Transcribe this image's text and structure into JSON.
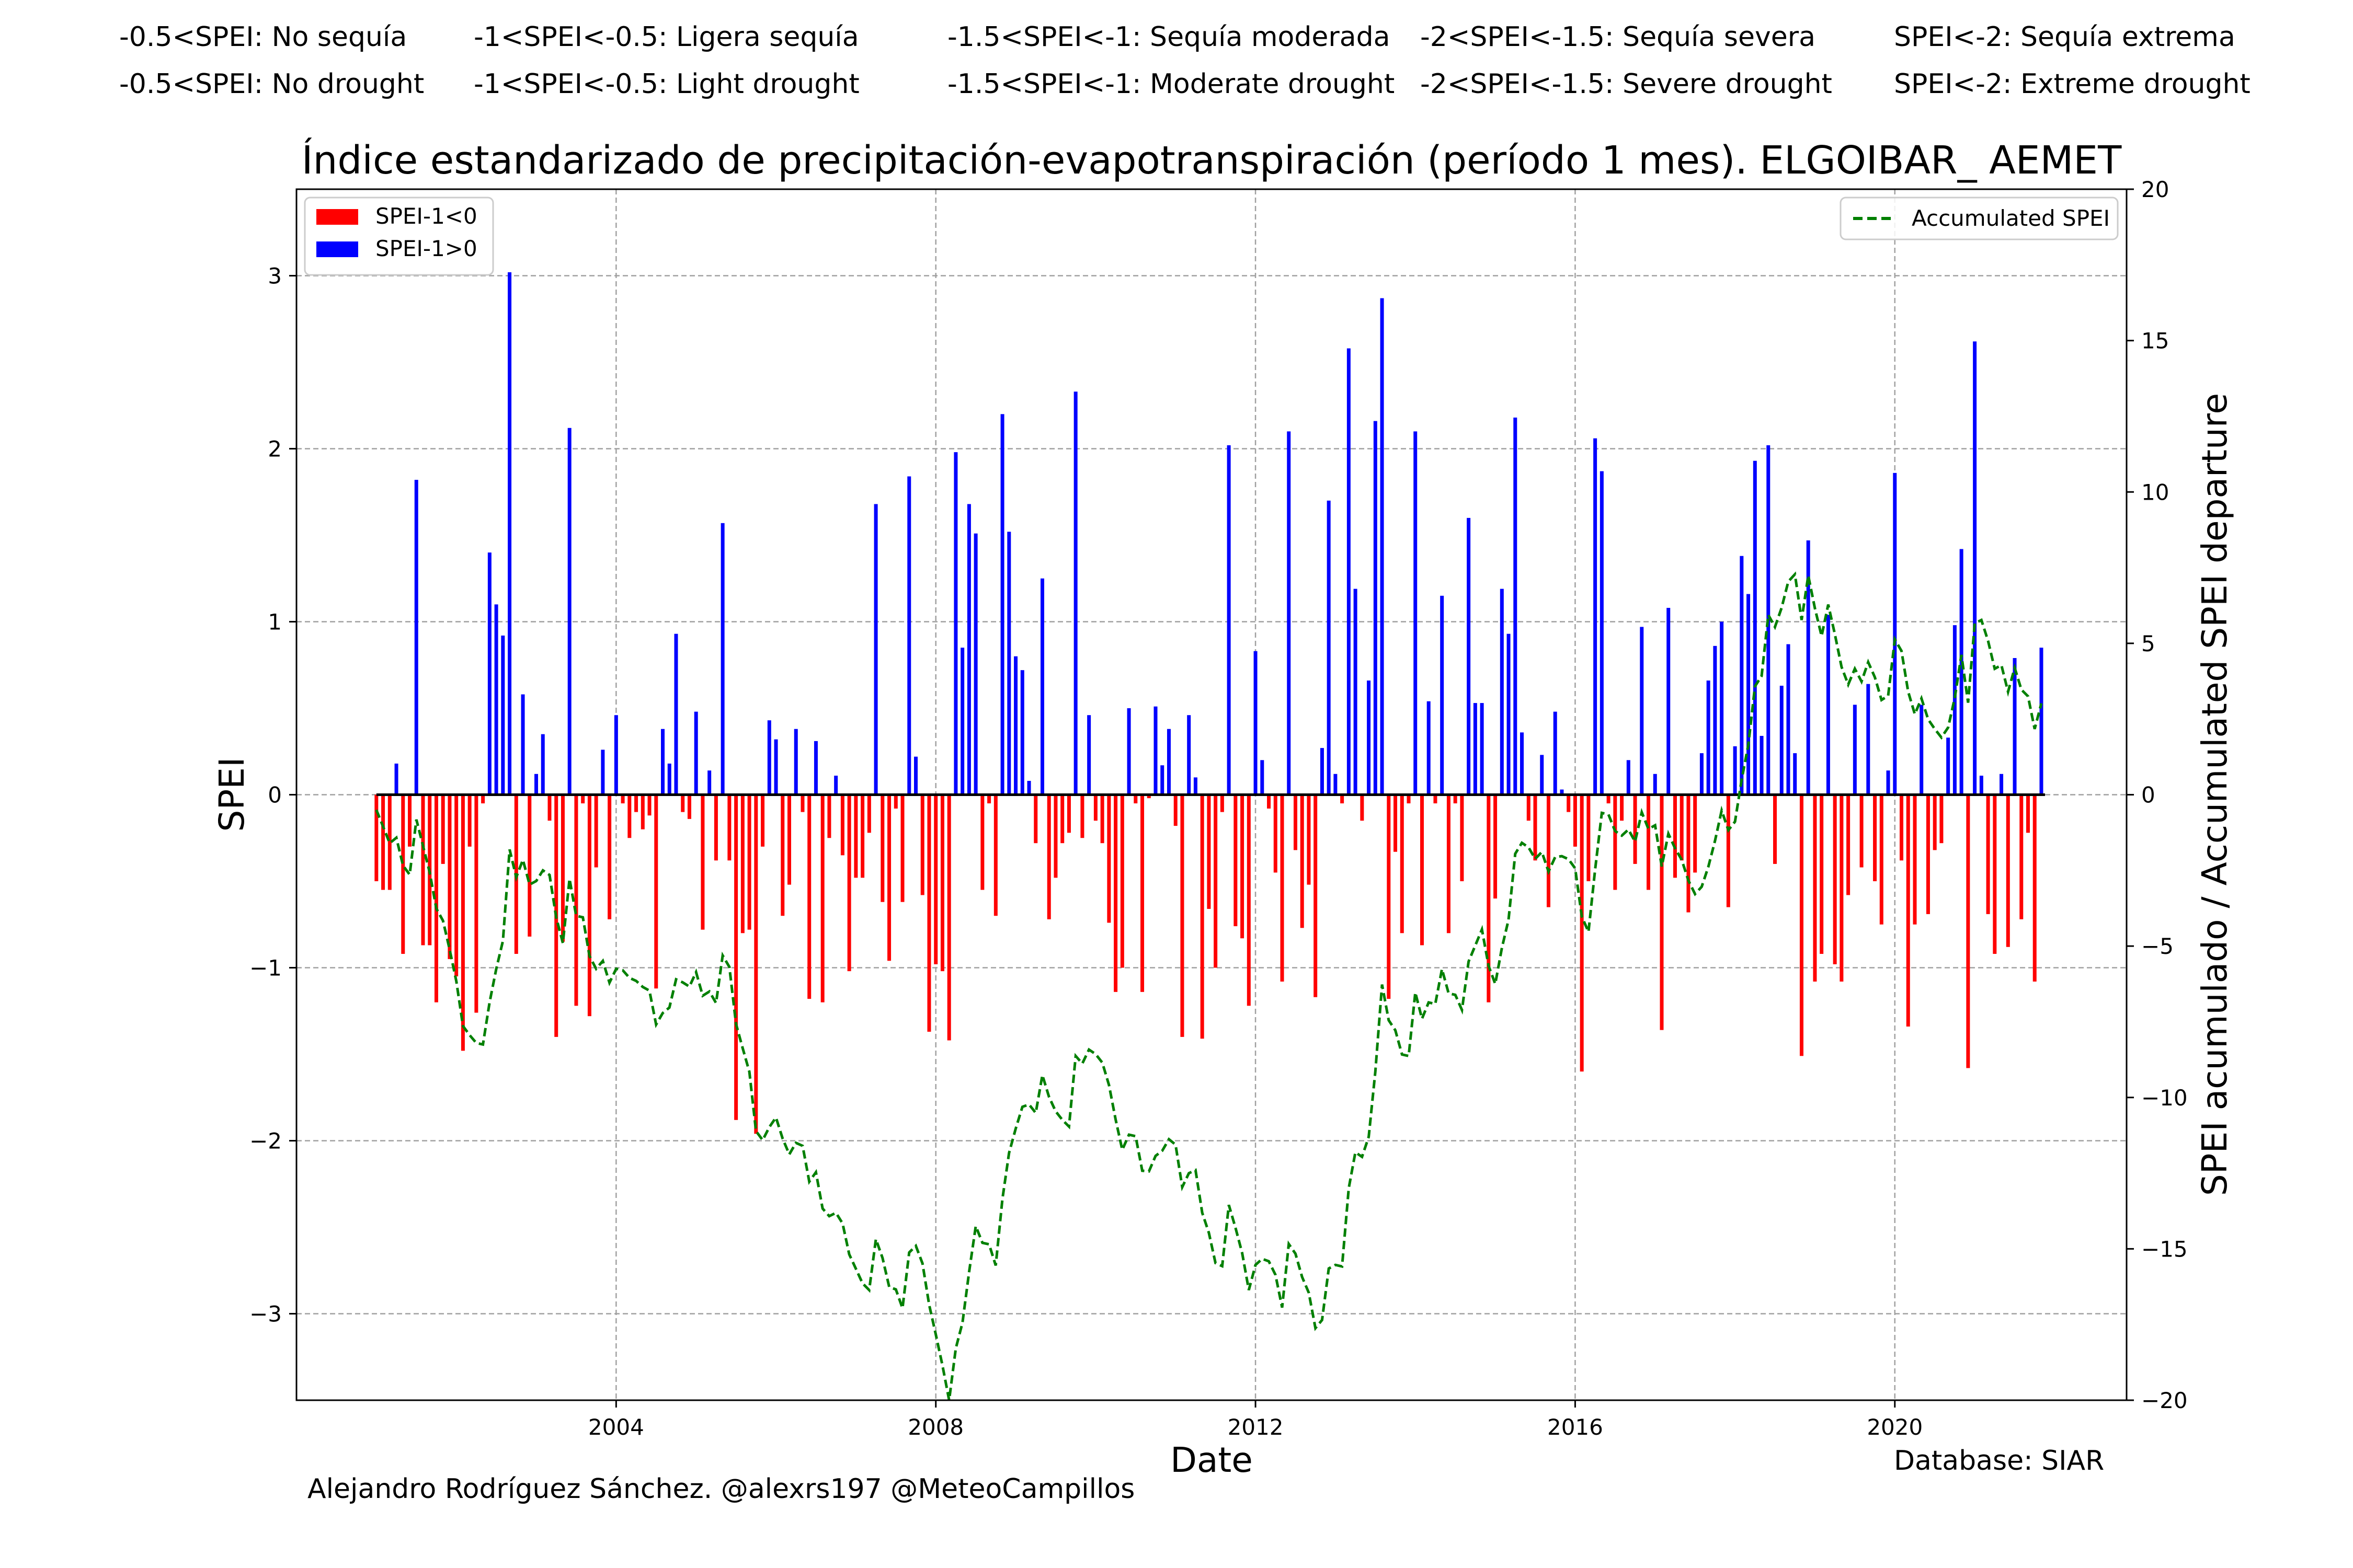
{
  "header": {
    "es": [
      "-0.5<SPEI: No sequía",
      "-1<SPEI<-0.5: Ligera sequía",
      "-1.5<SPEI<-1: Sequía moderada",
      "-2<SPEI<-1.5: Sequía severa",
      "SPEI<-2: Sequía extrema"
    ],
    "en": [
      "-0.5<SPEI: No drought",
      "-1<SPEI<-0.5: Light drought",
      "-1.5<SPEI<-1: Moderate drought",
      "-2<SPEI<-1.5: Severe drought",
      "SPEI<-2: Extreme drought"
    ]
  },
  "footer": {
    "credit": "Alejandro Rodríguez Sánchez. @alexrs197 @MeteoCampillos",
    "database": "Database: SIAR"
  },
  "chart_data": {
    "type": "bar",
    "title": "Índice estandarizado de precipitación-evapotranspiración (período 1 mes). ELGOIBAR_ AEMET",
    "xlabel": "Date",
    "ylabel": "SPEI",
    "y2label": "SPEI acumulado / Accumulated SPEI departure",
    "xlim": [
      2000.0,
      2022.9
    ],
    "ylim": [
      -3.5,
      3.5
    ],
    "y2lim": [
      -20,
      20
    ],
    "xticks": [
      "2004",
      "2008",
      "2012",
      "2016",
      "2020"
    ],
    "yticks": [
      "−3",
      "−2",
      "−1",
      "0",
      "1",
      "2",
      "3"
    ],
    "y2ticks": [
      "−20",
      "−15",
      "−10",
      "−5",
      "0",
      "5",
      "10",
      "15",
      "20"
    ],
    "grid": true,
    "legend_left": {
      "position": "top-left",
      "entries": [
        "SPEI-1<0",
        "SPEI-1>0"
      ]
    },
    "legend_right": {
      "position": "top-right",
      "entries": [
        "Accumulated SPEI"
      ]
    },
    "colors": {
      "negative": "#ff0000",
      "positive": "#0000ff",
      "accumulated": "#008000",
      "zero_line": "#000000"
    },
    "start": "2001-01",
    "frequency": "monthly",
    "spei": [
      -0.5,
      -0.55,
      -0.55,
      0.18,
      -0.92,
      -0.3,
      1.82,
      -0.87,
      -0.87,
      -1.2,
      -0.4,
      -0.95,
      -1.05,
      -1.48,
      -0.3,
      -1.26,
      -0.05,
      1.4,
      1.1,
      0.92,
      3.02,
      -0.92,
      0.58,
      -0.82,
      0.12,
      0.35,
      -0.15,
      -1.4,
      -0.85,
      2.12,
      -1.22,
      -0.05,
      -1.28,
      -0.42,
      0.26,
      -0.72,
      0.46,
      -0.05,
      -0.25,
      -0.1,
      -0.2,
      -0.12,
      -1.12,
      0.38,
      0.18,
      0.93,
      -0.1,
      -0.14,
      0.48,
      -0.78,
      0.14,
      -0.38,
      1.57,
      -0.38,
      -1.88,
      -0.8,
      -0.78,
      -1.96,
      -0.3,
      0.43,
      0.32,
      -0.7,
      -0.52,
      0.38,
      -0.1,
      -1.18,
      0.31,
      -1.2,
      -0.25,
      0.11,
      -0.35,
      -1.02,
      -0.48,
      -0.48,
      -0.22,
      1.68,
      -0.62,
      -0.96,
      -0.08,
      -0.62,
      1.84,
      0.22,
      -0.58,
      -1.37,
      -0.98,
      -1.02,
      -1.42,
      1.98,
      0.85,
      1.68,
      1.51,
      -0.55,
      -0.05,
      -0.7,
      2.2,
      1.52,
      0.8,
      0.72,
      0.08,
      -0.28,
      1.25,
      -0.72,
      -0.48,
      -0.28,
      -0.22,
      2.33,
      -0.25,
      0.46,
      -0.15,
      -0.28,
      -0.74,
      -1.14,
      -1.0,
      0.5,
      -0.05,
      -1.14,
      -0.02,
      0.51,
      0.17,
      0.38,
      -0.18,
      -1.4,
      0.46,
      0.1,
      -1.41,
      -0.66,
      -1.0,
      -0.1,
      2.02,
      -0.76,
      -0.83,
      -1.22,
      0.83,
      0.2,
      -0.08,
      -0.45,
      -1.08,
      2.1,
      -0.32,
      -0.77,
      -0.52,
      -1.17,
      0.27,
      1.7,
      0.12,
      -0.05,
      2.58,
      1.19,
      -0.15,
      0.66,
      2.16,
      2.87,
      -1.18,
      -0.33,
      -0.8,
      -0.05,
      2.1,
      -0.87,
      0.54,
      -0.05,
      1.15,
      -0.8,
      -0.05,
      -0.5,
      1.6,
      0.53,
      0.53,
      -1.2,
      -0.6,
      1.19,
      0.93,
      2.18,
      0.36,
      -0.15,
      -0.38,
      0.23,
      -0.65,
      0.48,
      0.03,
      -0.1,
      -0.3,
      -1.6,
      -0.5,
      2.06,
      1.87,
      -0.05,
      -0.55,
      -0.15,
      0.2,
      -0.4,
      0.97,
      -0.55,
      0.12,
      -1.36,
      1.08,
      -0.48,
      -0.38,
      -0.68,
      -0.45,
      0.24,
      0.66,
      0.86,
      1.0,
      -0.65,
      0.28,
      1.38,
      1.16,
      1.93,
      0.34,
      2.02,
      -0.4,
      0.63,
      0.87,
      0.24,
      -1.51,
      1.47,
      -1.08,
      -0.92,
      1.04,
      -0.98,
      -1.08,
      -0.58,
      0.52,
      -0.42,
      0.64,
      -0.5,
      -0.75,
      0.14,
      1.86,
      -0.38,
      -1.34,
      -0.75,
      0.52,
      -0.69,
      -0.32,
      -0.28,
      0.33,
      0.98,
      1.42,
      -1.58,
      2.62,
      0.11,
      -0.69,
      -0.92,
      0.12,
      -0.88,
      0.79,
      -0.72,
      -0.22,
      -1.08,
      0.85
    ],
    "accumulated": [
      -0.5,
      -1.05,
      -1.6,
      -1.42,
      -2.34,
      -2.64,
      -0.82,
      -1.69,
      -2.56,
      -3.76,
      -4.16,
      -5.11,
      -6.16,
      -7.64,
      -7.94,
      -8.2,
      -8.25,
      -6.85,
      -5.75,
      -4.83,
      -1.81,
      -2.73,
      -2.15,
      -2.97,
      -2.85,
      -2.5,
      -2.65,
      -4.05,
      -4.9,
      -2.78,
      -4.0,
      -4.05,
      -5.33,
      -5.75,
      -5.49,
      -6.21,
      -5.75,
      -5.8,
      -6.05,
      -6.15,
      -6.35,
      -6.47,
      -7.59,
      -7.21,
      -7.03,
      -6.1,
      -6.2,
      -6.34,
      -5.86,
      -6.64,
      -6.5,
      -6.88,
      -5.31,
      -5.69,
      -7.57,
      -8.37,
      -9.15,
      -11.11,
      -11.41,
      -10.98,
      -10.66,
      -11.36,
      -11.88,
      -11.5,
      -11.6,
      -12.78,
      -12.47,
      -13.67,
      -13.92,
      -13.81,
      -14.16,
      -15.18,
      -15.66,
      -16.14,
      -16.36,
      -14.68,
      -15.3,
      -16.26,
      -16.34,
      -16.96,
      -15.12,
      -14.9,
      -15.48,
      -16.85,
      -17.83,
      -18.85,
      -20.27,
      -18.29,
      -17.44,
      -15.76,
      -14.25,
      -14.8,
      -14.85,
      -15.55,
      -13.35,
      -11.83,
      -11.03,
      -10.31,
      -10.23,
      -10.51,
      -9.26,
      -9.98,
      -10.46,
      -10.74,
      -10.96,
      -8.63,
      -8.88,
      -8.42,
      -8.57,
      -8.85,
      -9.59,
      -10.73,
      -11.73,
      -11.23,
      -11.28,
      -12.42,
      -12.44,
      -11.93,
      -11.76,
      -11.38,
      -11.56,
      -12.96,
      -12.5,
      -12.4,
      -13.81,
      -14.47,
      -15.47,
      -15.57,
      -13.55,
      -14.31,
      -15.14,
      -16.36,
      -15.53,
      -15.33,
      -15.41,
      -15.86,
      -16.94,
      -14.84,
      -15.16,
      -15.93,
      -16.45,
      -17.62,
      -17.35,
      -15.65,
      -15.53,
      -15.58,
      -13.0,
      -11.81,
      -11.96,
      -11.3,
      -9.14,
      -6.27,
      -7.45,
      -7.78,
      -8.58,
      -8.63,
      -6.53,
      -7.4,
      -6.86,
      -6.91,
      -5.76,
      -6.56,
      -6.61,
      -7.11,
      -5.51,
      -4.98,
      -4.45,
      -5.65,
      -6.25,
      -5.06,
      -4.13,
      -1.95,
      -1.59,
      -1.74,
      -2.12,
      -1.89,
      -2.54,
      -2.06,
      -2.03,
      -2.13,
      -2.43,
      -4.03,
      -4.53,
      -2.47,
      -0.6,
      -0.65,
      -1.2,
      -1.35,
      -1.15,
      -1.55,
      -0.58,
      -1.13,
      -1.01,
      -2.37,
      -1.29,
      -1.77,
      -2.15,
      -2.83,
      -3.28,
      -3.04,
      -2.38,
      -1.52,
      -0.52,
      -1.17,
      -0.89,
      0.49,
      1.65,
      3.58,
      3.92,
      5.94,
      5.54,
      6.17,
      7.04,
      7.28,
      5.77,
      7.24,
      6.16,
      5.24,
      6.28,
      5.3,
      4.22,
      3.64,
      4.16,
      3.74,
      4.38,
      3.88,
      3.13,
      3.27,
      5.13,
      4.75,
      3.41,
      2.66,
      3.18,
      2.49,
      2.17,
      1.89,
      2.22,
      3.2,
      4.62,
      3.04,
      5.66,
      5.77,
      5.08,
      4.16,
      4.28,
      3.4,
      4.19,
      3.47,
      3.25,
      2.17,
      3.02
    ]
  }
}
